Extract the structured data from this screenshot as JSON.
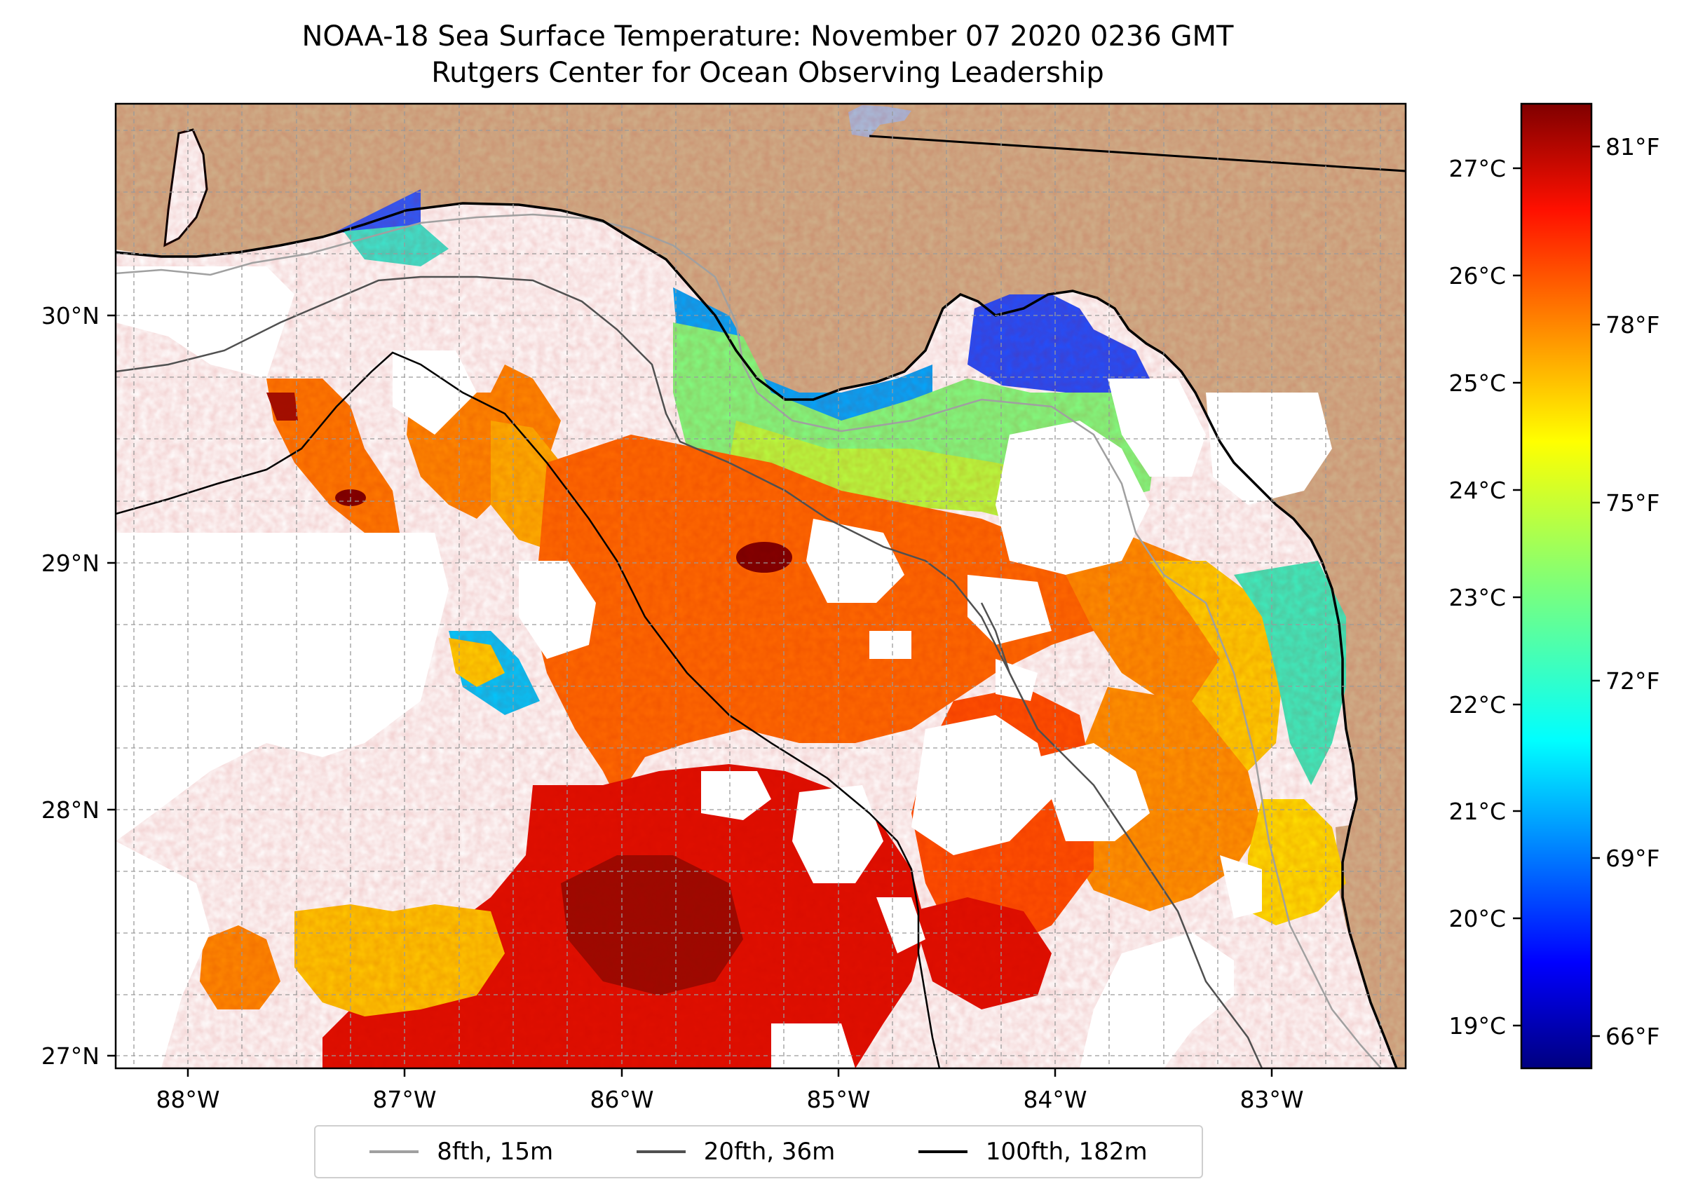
{
  "title": {
    "line1": "NOAA-18 Sea Surface Temperature: November 07 2020 0236 GMT",
    "line2": "Rutgers Center for Ocean Observing Leadership"
  },
  "map": {
    "lon_ticks": [
      "88°W",
      "87°W",
      "86°W",
      "85°W",
      "84°W",
      "83°W"
    ],
    "lat_ticks": [
      "30°N",
      "29°N",
      "28°N",
      "27°N"
    ],
    "land_color": "#cfb38c",
    "gridlines": true
  },
  "colorbar": {
    "celsius_ticks": [
      "27°C",
      "26°C",
      "25°C",
      "24°C",
      "23°C",
      "22°C",
      "21°C",
      "20°C",
      "19°C"
    ],
    "fahrenheit_ticks": [
      "81°F",
      "78°F",
      "75°F",
      "72°F",
      "69°F",
      "66°F"
    ],
    "colormap": "jet"
  },
  "legend": {
    "items": [
      {
        "label": "8fth, 15m",
        "color": "#a0a0a0"
      },
      {
        "label": "20fth, 36m",
        "color": "#505050"
      },
      {
        "label": "100fth, 182m",
        "color": "#000000"
      }
    ]
  }
}
